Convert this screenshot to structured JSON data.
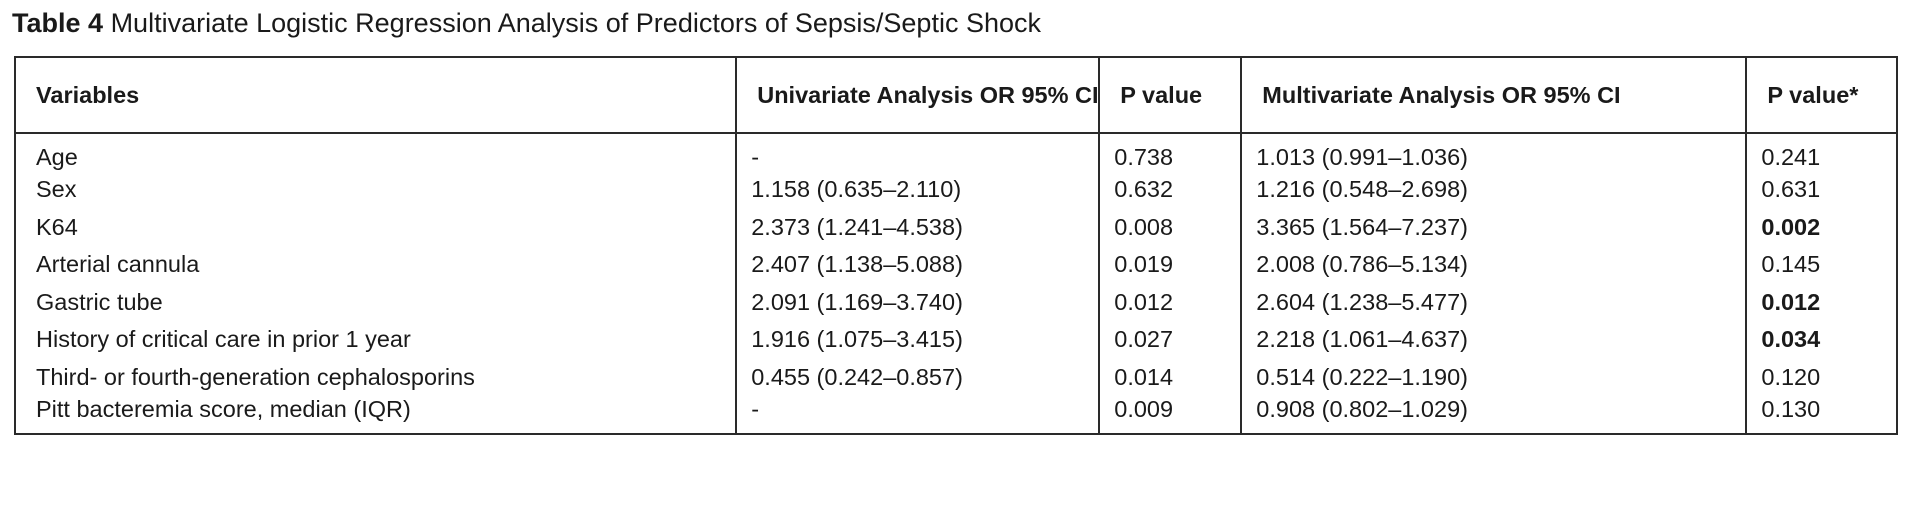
{
  "caption": {
    "label": "Table 4",
    "title": "Multivariate Logistic Regression Analysis of Predictors of Sepsis/Septic Shock"
  },
  "table": {
    "headers": [
      "Variables",
      "Univariate Analysis OR 95% CI",
      "P value",
      "Multivariate Analysis OR 95% CI",
      "P value*"
    ],
    "rows": [
      {
        "variable": "Age",
        "univariate": "-",
        "p_uni": "0.738",
        "multivariate": "1.013 (0.991–1.036)",
        "p_multi": "0.241",
        "p_multi_bold": false
      },
      {
        "variable": "Sex",
        "univariate": "1.158 (0.635–2.110)",
        "p_uni": "0.632",
        "multivariate": "1.216 (0.548–2.698)",
        "p_multi": "0.631",
        "p_multi_bold": false
      },
      {
        "variable": "K64",
        "univariate": "2.373 (1.241–4.538)",
        "p_uni": "0.008",
        "multivariate": "3.365 (1.564–7.237)",
        "p_multi": "0.002",
        "p_multi_bold": true
      },
      {
        "variable": "Arterial cannula",
        "univariate": "2.407 (1.138–5.088)",
        "p_uni": "0.019",
        "multivariate": "2.008 (0.786–5.134)",
        "p_multi": "0.145",
        "p_multi_bold": false
      },
      {
        "variable": "Gastric tube",
        "univariate": "2.091 (1.169–3.740)",
        "p_uni": "0.012",
        "multivariate": "2.604 (1.238–5.477)",
        "p_multi": "0.012",
        "p_multi_bold": true
      },
      {
        "variable": "History of critical care in prior 1 year",
        "univariate": "1.916 (1.075–3.415)",
        "p_uni": "0.027",
        "multivariate": "2.218 (1.061–4.637)",
        "p_multi": "0.034",
        "p_multi_bold": true
      },
      {
        "variable": "Third- or fourth-generation cephalosporins",
        "univariate": "0.455 (0.242–0.857)",
        "p_uni": "0.014",
        "multivariate": "0.514 (0.222–1.190)",
        "p_multi": "0.120",
        "p_multi_bold": false
      },
      {
        "variable": "Pitt bacteremia score, median (IQR)",
        "univariate": "-",
        "p_uni": "0.009",
        "multivariate": "0.908 (0.802–1.029)",
        "p_multi": "0.130",
        "p_multi_bold": false
      }
    ]
  }
}
